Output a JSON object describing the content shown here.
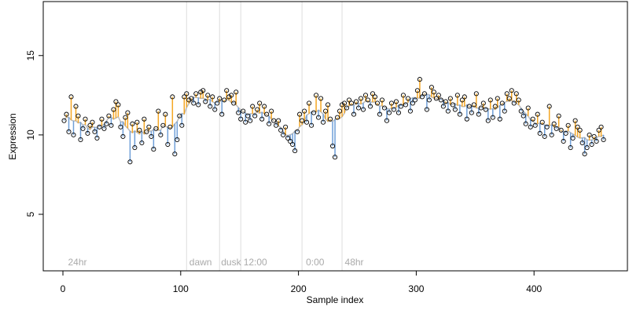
{
  "chart_data": {
    "type": "stem-scatter",
    "x_label": "Sample index",
    "y_label": "Expression",
    "xlim": [
      -16.7,
      479.3
    ],
    "ylim": [
      1.44,
      18.4
    ],
    "xticks": [
      0,
      100,
      200,
      300,
      400
    ],
    "yticks": [
      5,
      10,
      15
    ],
    "above_color": "#f5a623",
    "below_color": "#6f9fd8",
    "trend_color": "#bbbbbb",
    "point_color": "#000000",
    "vlines": [
      105,
      133,
      151,
      203,
      237
    ],
    "annotations": [
      {
        "text": "24hr",
        "x": 3
      },
      {
        "text": "dawn",
        "x": 106
      },
      {
        "text": "dusk",
        "x": 133
      },
      {
        "text": "12:00",
        "x": 152
      },
      {
        "text": "0:00",
        "x": 205
      },
      {
        "text": "48hr",
        "x": 238
      }
    ],
    "x": [
      1,
      3,
      5,
      7,
      9,
      11,
      13,
      15,
      17,
      19,
      21,
      23,
      25,
      27,
      29,
      31,
      33,
      35,
      37,
      39,
      41,
      43,
      45,
      47,
      49,
      51,
      53,
      55,
      57,
      59,
      61,
      63,
      65,
      67,
      69,
      71,
      73,
      75,
      77,
      79,
      81,
      83,
      85,
      87,
      89,
      91,
      93,
      95,
      97,
      99,
      101,
      103,
      105,
      107,
      109,
      111,
      113,
      115,
      117,
      119,
      121,
      123,
      125,
      127,
      129,
      131,
      133,
      135,
      137,
      139,
      141,
      143,
      145,
      147,
      149,
      151,
      153,
      155,
      157,
      159,
      161,
      163,
      165,
      167,
      169,
      171,
      173,
      175,
      177,
      179,
      181,
      183,
      185,
      187,
      189,
      191,
      193,
      195,
      197,
      199,
      201,
      203,
      205,
      207,
      209,
      211,
      213,
      215,
      217,
      219,
      221,
      223,
      225,
      227,
      229,
      231,
      233,
      235,
      237,
      239,
      241,
      243,
      245,
      247,
      249,
      251,
      253,
      255,
      257,
      259,
      261,
      263,
      265,
      267,
      269,
      271,
      273,
      275,
      277,
      279,
      281,
      283,
      285,
      287,
      289,
      291,
      293,
      295,
      297,
      299,
      301,
      303,
      305,
      307,
      309,
      311,
      313,
      315,
      317,
      319,
      321,
      323,
      325,
      327,
      329,
      331,
      333,
      335,
      337,
      339,
      341,
      343,
      345,
      347,
      349,
      351,
      353,
      355,
      357,
      359,
      361,
      363,
      365,
      367,
      369,
      371,
      373,
      375,
      377,
      379,
      381,
      383,
      385,
      387,
      389,
      391,
      393,
      395,
      397,
      399,
      401,
      403,
      405,
      407,
      409,
      411,
      413,
      415,
      417,
      419,
      421,
      423,
      425,
      427,
      429,
      431,
      433,
      435,
      437,
      439,
      441,
      443,
      445,
      447,
      449,
      451,
      453,
      455,
      457,
      459
    ],
    "values": [
      10.9,
      11.3,
      10.2,
      12.4,
      10.0,
      11.8,
      11.2,
      9.7,
      10.4,
      11.0,
      10.1,
      10.6,
      10.8,
      10.2,
      9.8,
      10.5,
      11.0,
      10.4,
      10.7,
      11.2,
      10.6,
      11.6,
      12.1,
      11.9,
      10.5,
      9.9,
      11.1,
      11.4,
      8.3,
      10.7,
      9.2,
      10.8,
      10.3,
      9.5,
      11.0,
      10.2,
      10.5,
      9.9,
      9.1,
      10.4,
      11.5,
      10.0,
      10.6,
      11.3,
      9.4,
      10.5,
      12.4,
      8.8,
      9.7,
      11.2,
      10.6,
      12.4,
      12.6,
      12.2,
      12.3,
      12.0,
      12.6,
      11.9,
      12.7,
      12.8,
      12.1,
      12.5,
      11.8,
      12.4,
      11.6,
      12.0,
      12.3,
      11.3,
      12.2,
      12.8,
      12.4,
      12.5,
      12.0,
      12.7,
      11.4,
      11.0,
      11.5,
      10.8,
      11.2,
      10.9,
      11.8,
      11.2,
      11.6,
      12.0,
      11.0,
      11.8,
      11.3,
      10.7,
      11.5,
      10.9,
      10.6,
      10.9,
      10.3,
      10.0,
      10.5,
      9.8,
      9.6,
      9.4,
      9.0,
      10.2,
      11.3,
      10.9,
      11.5,
      10.8,
      12.0,
      10.6,
      11.4,
      12.5,
      11.1,
      12.3,
      10.8,
      11.5,
      11.9,
      11.0,
      9.3,
      8.6,
      11.1,
      11.5,
      11.9,
      12.0,
      11.7,
      12.2,
      12.0,
      11.3,
      12.1,
      11.7,
      12.3,
      11.6,
      12.5,
      12.2,
      11.8,
      12.6,
      12.4,
      12.0,
      11.3,
      12.2,
      11.7,
      10.9,
      11.4,
      12.0,
      11.6,
      12.1,
      11.4,
      11.8,
      12.5,
      11.9,
      12.3,
      11.5,
      12.0,
      12.2,
      12.8,
      13.5,
      12.4,
      12.6,
      11.6,
      12.2,
      13.0,
      12.7,
      12.3,
      12.5,
      12.2,
      11.8,
      12.1,
      11.5,
      12.3,
      11.9,
      11.6,
      12.5,
      11.3,
      12.2,
      12.4,
      11.0,
      11.8,
      11.4,
      11.9,
      12.6,
      11.3,
      11.7,
      12.0,
      11.6,
      10.9,
      12.2,
      11.1,
      11.8,
      12.3,
      11.0,
      12.0,
      11.5,
      12.6,
      12.3,
      12.8,
      12.0,
      12.6,
      12.2,
      11.5,
      11.2,
      10.7,
      11.7,
      10.5,
      11.0,
      10.6,
      11.3,
      10.1,
      10.8,
      9.9,
      10.5,
      11.8,
      10.0,
      10.7,
      10.4,
      11.2,
      10.3,
      9.6,
      10.1,
      10.6,
      9.2,
      9.8,
      10.9,
      10.5,
      10.3,
      9.5,
      8.8,
      9.2,
      10.0,
      9.4,
      9.9,
      9.6,
      10.3,
      10.5,
      9.7
    ]
  }
}
